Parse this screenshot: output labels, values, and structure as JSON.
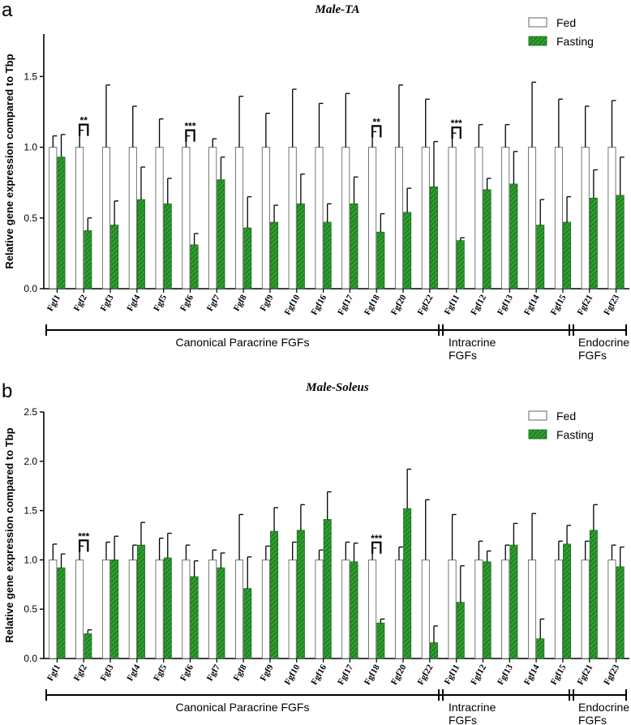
{
  "colors": {
    "fed_fill": "#ffffff",
    "fasting_fill": "#2f9e2f",
    "fasting_hatch": "#1a6b1a",
    "axis": "#000000"
  },
  "groups": [
    {
      "label": "Canonical Paracrine FGFs",
      "from": 0,
      "to": 14
    },
    {
      "label": "Intracrine FGFs",
      "from": 15,
      "to": 18
    },
    {
      "label": "Endocrine FGFs",
      "from": 19,
      "to": 21
    }
  ],
  "chart_data": [
    {
      "type": "bar",
      "panel_letter": "a",
      "title": "Male-TA",
      "ylabel": "Relative gene expression compared to Tbp",
      "ylim": [
        0,
        1.8
      ],
      "yticks": [
        "0.0",
        "0.5",
        "1.0",
        "1.5"
      ],
      "categories": [
        "Fgf1",
        "Fgf2",
        "Fgf3",
        "Fgf4",
        "Fgf5",
        "Fgf6",
        "Fgf7",
        "Fgf8",
        "Fgf9",
        "Fgf10",
        "Fgf16",
        "Fgf17",
        "Fgf18",
        "Fgf20",
        "Fgf22",
        "Fgf11",
        "Fgf12",
        "Fgf13",
        "Fgf14",
        "Fgf15",
        "Fgf21",
        "Fgf23"
      ],
      "series": [
        {
          "name": "Fed",
          "values": [
            1,
            1,
            1,
            1,
            1,
            1,
            1,
            1,
            1,
            1,
            1,
            1,
            1,
            1,
            1,
            1,
            1,
            1,
            1,
            1,
            1,
            1
          ],
          "errors": [
            0.08,
            0.12,
            0.44,
            0.29,
            0.2,
            0.08,
            0.06,
            0.36,
            0.24,
            0.41,
            0.31,
            0.38,
            0.11,
            0.44,
            0.34,
            0.1,
            0.16,
            0.16,
            0.46,
            0.34,
            0.29,
            0.33
          ]
        },
        {
          "name": "Fasting",
          "values": [
            0.93,
            0.41,
            0.45,
            0.63,
            0.6,
            0.31,
            0.77,
            0.43,
            0.47,
            0.6,
            0.47,
            0.6,
            0.4,
            0.54,
            0.72,
            0.34,
            0.7,
            0.74,
            0.45,
            0.47,
            0.64,
            0.66
          ],
          "errors": [
            0.16,
            0.09,
            0.17,
            0.23,
            0.18,
            0.08,
            0.16,
            0.22,
            0.12,
            0.21,
            0.13,
            0.19,
            0.13,
            0.17,
            0.32,
            0.02,
            0.08,
            0.23,
            0.18,
            0.18,
            0.2,
            0.27
          ]
        }
      ],
      "significance": [
        {
          "index": 1,
          "label": "**"
        },
        {
          "index": 5,
          "label": "***"
        },
        {
          "index": 12,
          "label": "**"
        },
        {
          "index": 15,
          "label": "***"
        }
      ],
      "legend": "top-right"
    },
    {
      "type": "bar",
      "panel_letter": "b",
      "title": "Male-Soleus",
      "ylabel": "Relative gene expression compared to Tbp",
      "ylim": [
        0,
        2.5
      ],
      "yticks": [
        "0.0",
        "0.5",
        "1.0",
        "1.5",
        "2.0",
        "2.5"
      ],
      "categories": [
        "Fgf1",
        "Fgf2",
        "Fgf3",
        "Fgf4",
        "Fgf5",
        "Fgf6",
        "Fgf7",
        "Fgf8",
        "Fgf9",
        "Fgf10",
        "Fgf16",
        "Fgf17",
        "Fgf18",
        "Fgf20",
        "Fgf22",
        "Fgf11",
        "Fgf12",
        "Fgf13",
        "Fgf14",
        "Fgf15",
        "Fgf21",
        "Fgf23"
      ],
      "series": [
        {
          "name": "Fed",
          "values": [
            1,
            1,
            1,
            1,
            1,
            1,
            1,
            1,
            1,
            1,
            1,
            1,
            1,
            1,
            1,
            1,
            1,
            1,
            1,
            1,
            1,
            1
          ],
          "errors": [
            0.16,
            0.14,
            0.18,
            0.15,
            0.22,
            0.15,
            0.1,
            0.46,
            0.14,
            0.18,
            0.1,
            0.18,
            0.12,
            0.13,
            0.61,
            0.46,
            0.19,
            0.15,
            0.47,
            0.19,
            0.19,
            0.15
          ]
        },
        {
          "name": "Fasting",
          "values": [
            0.92,
            0.25,
            1.0,
            1.15,
            1.02,
            0.83,
            0.92,
            0.71,
            1.29,
            1.3,
            1.41,
            0.98,
            0.36,
            1.52,
            0.16,
            0.57,
            0.98,
            1.15,
            0.2,
            1.16,
            1.3,
            0.93
          ],
          "errors": [
            0.14,
            0.04,
            0.24,
            0.23,
            0.25,
            0.16,
            0.15,
            0.32,
            0.24,
            0.26,
            0.28,
            0.19,
            0.04,
            0.4,
            0.17,
            0.37,
            0.11,
            0.22,
            0.2,
            0.19,
            0.26,
            0.2
          ]
        }
      ],
      "significance": [
        {
          "index": 1,
          "label": "***"
        },
        {
          "index": 12,
          "label": "***"
        }
      ],
      "legend": "top-right"
    }
  ]
}
